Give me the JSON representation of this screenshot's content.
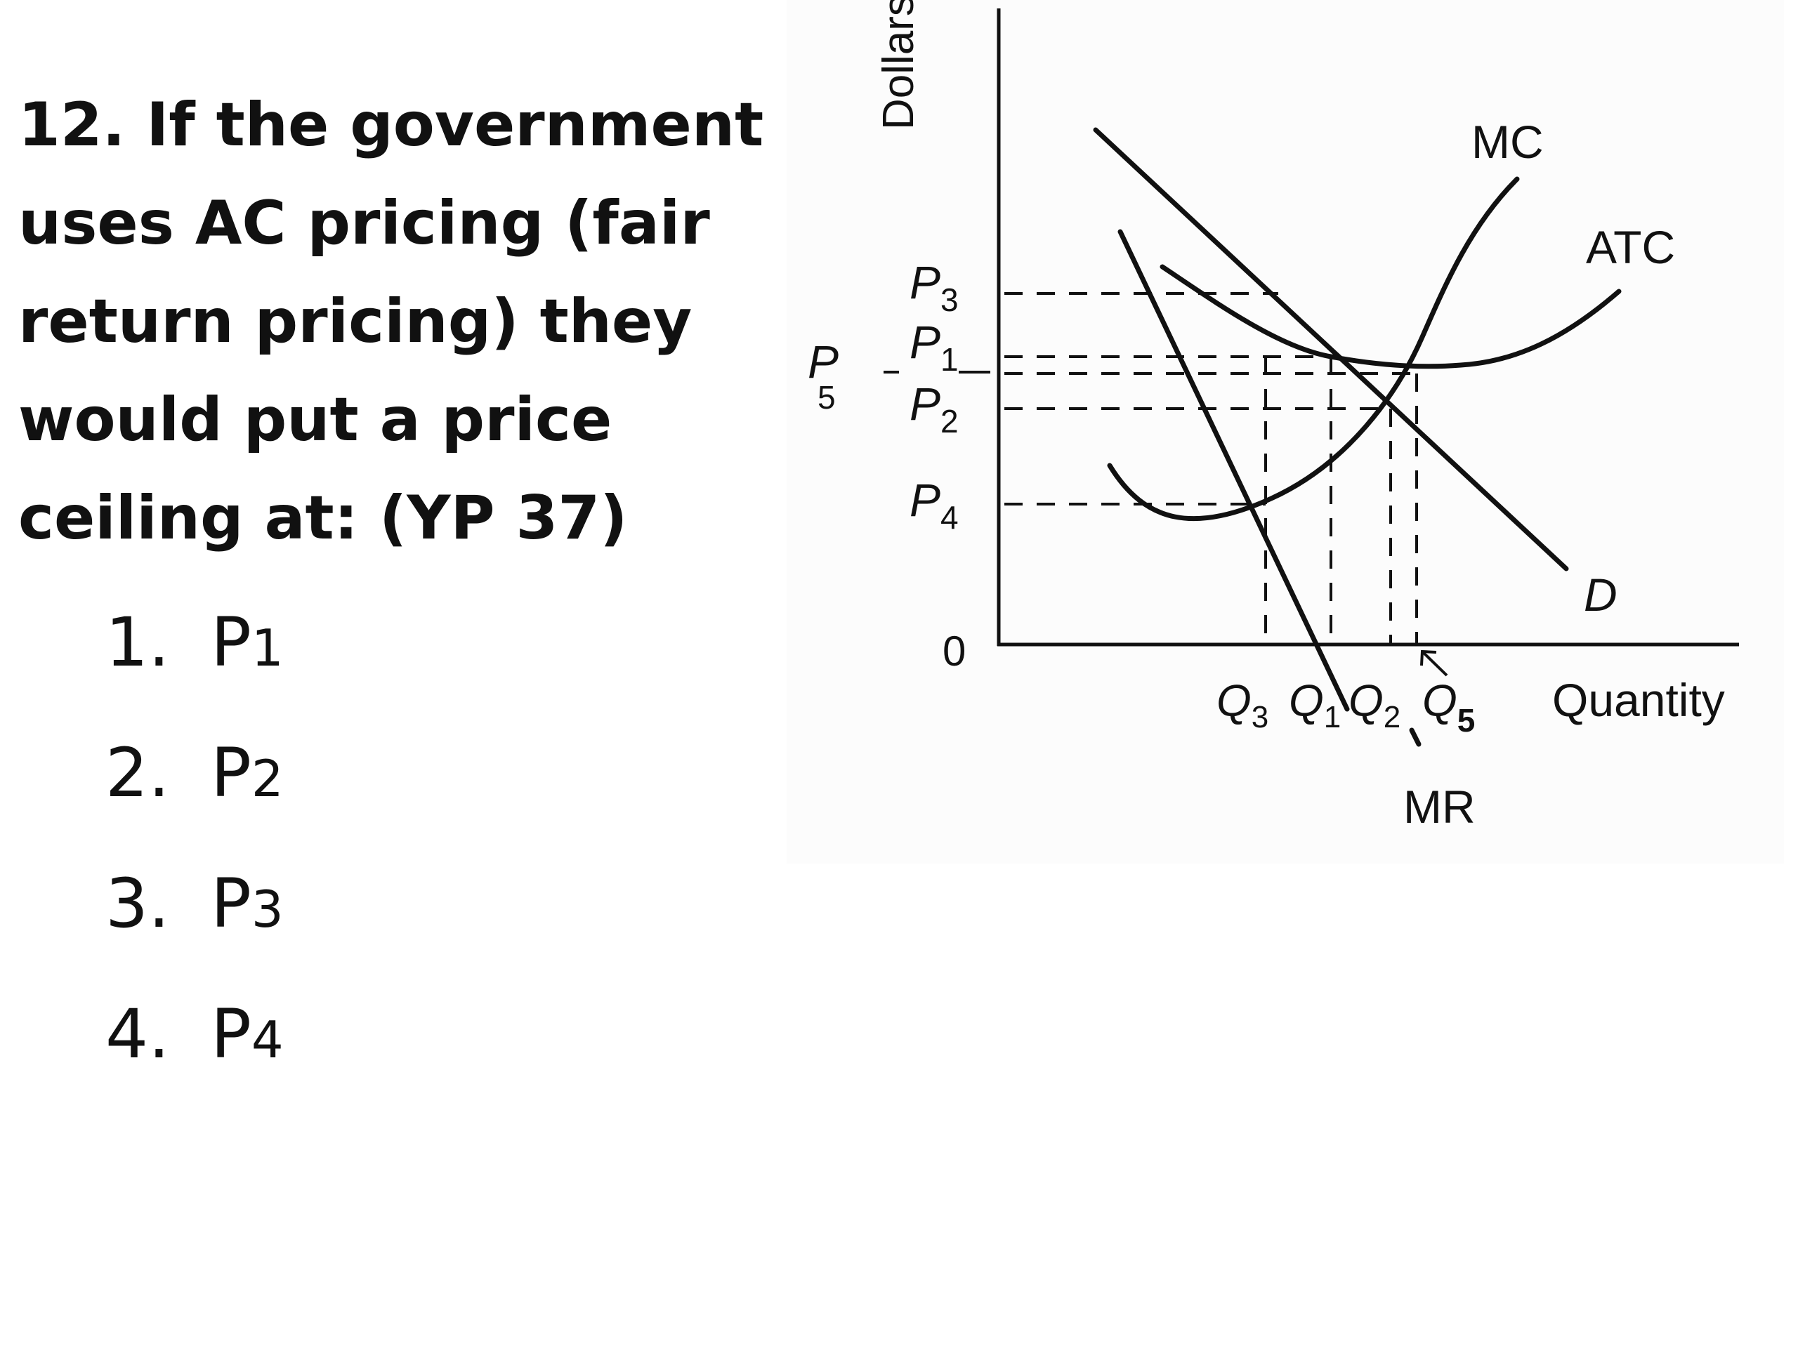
{
  "question": {
    "lines": [
      "12. If the government",
      "uses AC pricing  (fair",
      "return pricing) they",
      "would put a price",
      "ceiling at: (YP 37)"
    ]
  },
  "options": [
    {
      "num": "1.",
      "letter": "P",
      "sub": "1"
    },
    {
      "num": "2.",
      "letter": "P",
      "sub": "2"
    },
    {
      "num": "3.",
      "letter": "P",
      "sub": "3"
    },
    {
      "num": "4.",
      "letter": "P",
      "sub": "4"
    }
  ],
  "diagram": {
    "y_axis_label": "Dollars",
    "x_axis_label": "Quantity",
    "origin_label": "0",
    "curves": {
      "mc": "MC",
      "atc": "ATC",
      "demand": "D",
      "mr": "MR"
    },
    "price_labels": {
      "p3": {
        "letter": "P",
        "sub": "3"
      },
      "p1": {
        "letter": "P",
        "sub": "1"
      },
      "p5": {
        "letter": "P",
        "sub": "5"
      },
      "p2": {
        "letter": "P",
        "sub": "2"
      },
      "p4": {
        "letter": "P",
        "sub": "4"
      }
    },
    "quantity_labels": {
      "q3": {
        "letter": "Q",
        "sub": "3"
      },
      "q1": {
        "letter": "Q",
        "sub": "1"
      },
      "q2": {
        "letter": "Q",
        "sub": "2"
      },
      "q5": {
        "letter": "Q",
        "sub": "5"
      }
    },
    "colors": {
      "ink": "#111111",
      "background": "#ffffff"
    }
  }
}
